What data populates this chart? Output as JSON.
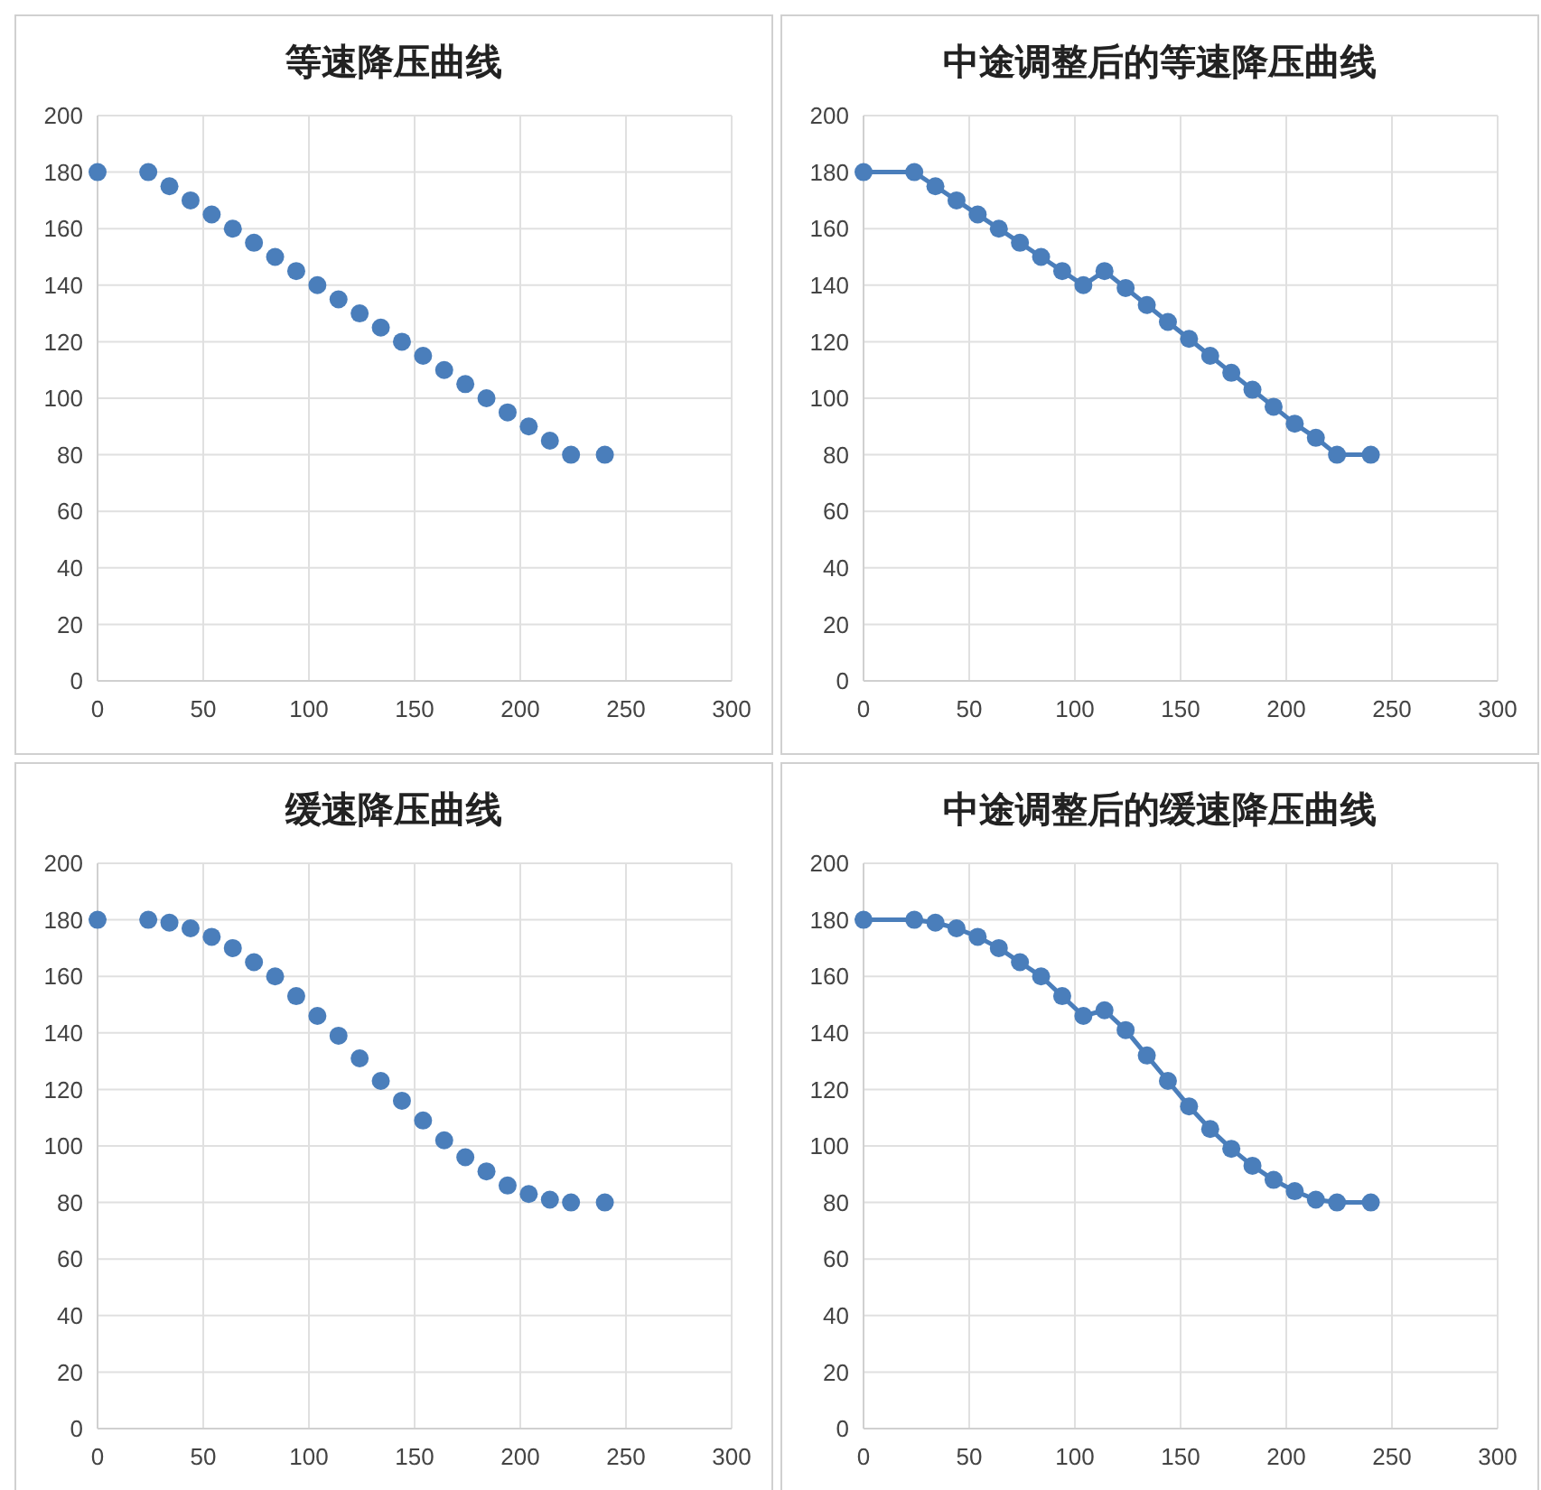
{
  "chart_data": [
    {
      "type": "scatter",
      "title": "等速降压曲线",
      "x": [
        0,
        24,
        34,
        44,
        54,
        64,
        74,
        84,
        94,
        104,
        114,
        124,
        134,
        144,
        154,
        164,
        174,
        184,
        194,
        204,
        214,
        224,
        240
      ],
      "series": [
        {
          "color": "#4a7ebb",
          "values": [
            180,
            180,
            175,
            170,
            165,
            160,
            155,
            150,
            145,
            140,
            135,
            130,
            125,
            120,
            115,
            110,
            105,
            100,
            95,
            90,
            85,
            80,
            80
          ]
        }
      ],
      "xlim": [
        0,
        300
      ],
      "xticks": [
        0,
        50,
        100,
        150,
        200,
        250,
        300
      ],
      "ylim": [
        0,
        200
      ],
      "yticks": [
        0,
        20,
        40,
        60,
        80,
        100,
        120,
        140,
        160,
        180,
        200
      ],
      "grid": true,
      "marker": "circle"
    },
    {
      "type": "line",
      "title": "中途调整后的等速降压曲线",
      "x": [
        0,
        24,
        34,
        44,
        54,
        64,
        74,
        84,
        94,
        104,
        114,
        124,
        134,
        144,
        154,
        164,
        174,
        184,
        194,
        204,
        214,
        224,
        240
      ],
      "series": [
        {
          "color": "#4a7ebb",
          "values": [
            180,
            180,
            175,
            170,
            165,
            160,
            155,
            150,
            145,
            140,
            145,
            139,
            133,
            127,
            121,
            115,
            109,
            103,
            97,
            91,
            86,
            80,
            80
          ]
        }
      ],
      "xlim": [
        0,
        300
      ],
      "xticks": [
        0,
        50,
        100,
        150,
        200,
        250,
        300
      ],
      "ylim": [
        0,
        200
      ],
      "yticks": [
        0,
        20,
        40,
        60,
        80,
        100,
        120,
        140,
        160,
        180,
        200
      ],
      "grid": true,
      "marker": "circle",
      "line_style": "solid"
    },
    {
      "type": "scatter",
      "title": "缓速降压曲线",
      "x": [
        0,
        24,
        34,
        44,
        54,
        64,
        74,
        84,
        94,
        104,
        114,
        124,
        134,
        144,
        154,
        164,
        174,
        184,
        194,
        204,
        214,
        224,
        240
      ],
      "series": [
        {
          "color": "#4a7ebb",
          "values": [
            180,
            180,
            179,
            177,
            174,
            170,
            165,
            160,
            153,
            146,
            139,
            131,
            123,
            116,
            109,
            102,
            96,
            91,
            86,
            83,
            81,
            80,
            80
          ]
        }
      ],
      "xlim": [
        0,
        300
      ],
      "xticks": [
        0,
        50,
        100,
        150,
        200,
        250,
        300
      ],
      "ylim": [
        0,
        200
      ],
      "yticks": [
        0,
        20,
        40,
        60,
        80,
        100,
        120,
        140,
        160,
        180,
        200
      ],
      "grid": true,
      "marker": "circle"
    },
    {
      "type": "line",
      "title": "中途调整后的缓速降压曲线",
      "x": [
        0,
        24,
        34,
        44,
        54,
        64,
        74,
        84,
        94,
        104,
        114,
        124,
        134,
        144,
        154,
        164,
        174,
        184,
        194,
        204,
        214,
        224,
        240
      ],
      "series": [
        {
          "color": "#4a7ebb",
          "values": [
            180,
            180,
            179,
            177,
            174,
            170,
            165,
            160,
            153,
            146,
            148,
            141,
            132,
            123,
            114,
            106,
            99,
            93,
            88,
            84,
            81,
            80,
            80
          ]
        }
      ],
      "xlim": [
        0,
        300
      ],
      "xticks": [
        0,
        50,
        100,
        150,
        200,
        250,
        300
      ],
      "ylim": [
        0,
        200
      ],
      "yticks": [
        0,
        20,
        40,
        60,
        80,
        100,
        120,
        140,
        160,
        180,
        200
      ],
      "grid": true,
      "marker": "circle",
      "line_style": "solid"
    }
  ]
}
